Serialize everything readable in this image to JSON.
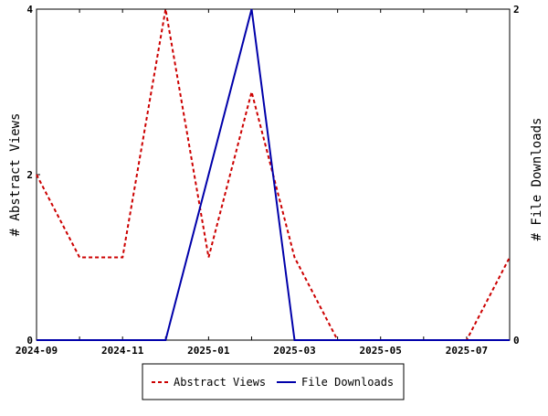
{
  "chart_data": {
    "type": "line",
    "x": [
      "2024-09",
      "2024-10",
      "2024-11",
      "2024-12",
      "2025-01",
      "2025-02",
      "2025-03",
      "2025-04",
      "2025-05",
      "2025-06",
      "2025-07",
      "2025-08"
    ],
    "x_ticks": [
      "2024-09",
      "2024-11",
      "2025-01",
      "2025-03",
      "2025-05",
      "2025-07"
    ],
    "y_left": {
      "label": "# Abstract Views",
      "ticks": [
        "0",
        "2",
        "4"
      ],
      "range": [
        0,
        4
      ]
    },
    "y_right": {
      "label": "# File Downloads",
      "ticks": [
        "0",
        "2"
      ],
      "range": [
        0,
        2
      ]
    },
    "series": [
      {
        "name": "Abstract Views",
        "axis": "left",
        "color": "#cc0000",
        "style": "dashed",
        "values": [
          2,
          1,
          1,
          4,
          1,
          3,
          1,
          0,
          0,
          0,
          0,
          1
        ]
      },
      {
        "name": "File Downloads",
        "axis": "right",
        "color": "#0000aa",
        "style": "solid",
        "values": [
          0,
          0,
          0,
          0,
          1,
          2,
          0,
          0,
          0,
          0,
          0,
          0
        ]
      }
    ],
    "legend_position": "bottom-center"
  }
}
